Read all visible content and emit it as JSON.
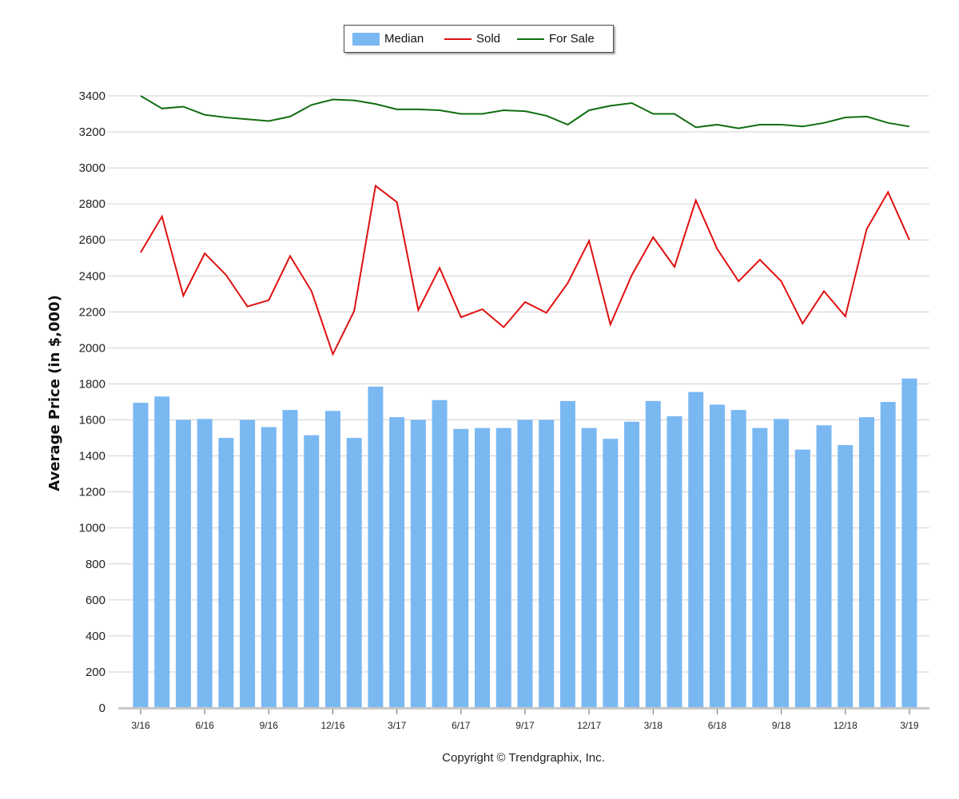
{
  "chart_data": {
    "type": "bar",
    "categories": [
      "3/16",
      "4/16",
      "5/16",
      "6/16",
      "7/16",
      "8/16",
      "9/16",
      "10/16",
      "11/16",
      "12/16",
      "1/17",
      "2/17",
      "3/17",
      "4/17",
      "5/17",
      "6/17",
      "7/17",
      "8/17",
      "9/17",
      "10/17",
      "11/17",
      "12/17",
      "1/18",
      "2/18",
      "3/18",
      "4/18",
      "5/18",
      "6/18",
      "7/18",
      "8/18",
      "9/18",
      "10/18",
      "11/18",
      "12/18",
      "1/19",
      "2/19",
      "3/19"
    ],
    "x_tick_labels": [
      "3/16",
      "6/16",
      "9/16",
      "12/16",
      "3/17",
      "6/17",
      "9/17",
      "12/17",
      "3/18",
      "6/18",
      "9/18",
      "12/18",
      "3/19"
    ],
    "series": [
      {
        "name": "Median",
        "kind": "bar",
        "color": "#7ab8f2",
        "values": [
          1695,
          1730,
          1600,
          1605,
          1500,
          1600,
          1560,
          1655,
          1515,
          1650,
          1500,
          1785,
          1615,
          1600,
          1710,
          1550,
          1555,
          1555,
          1600,
          1600,
          1705,
          1555,
          1495,
          1590,
          1705,
          1620,
          1755,
          1685,
          1655,
          1555,
          1605,
          1435,
          1570,
          1460,
          1615,
          1700,
          1830
        ]
      },
      {
        "name": "Sold",
        "kind": "line",
        "color": "#e01010",
        "values": [
          2530,
          2730,
          2290,
          2525,
          2405,
          2230,
          2265,
          2510,
          2315,
          1965,
          2205,
          2900,
          2810,
          2210,
          2445,
          2170,
          2215,
          2115,
          2255,
          2195,
          2360,
          2595,
          2130,
          2405,
          2615,
          2450,
          2820,
          2550,
          2370,
          2490,
          2370,
          2135,
          2315,
          2175,
          2660,
          2865,
          2600
        ]
      },
      {
        "name": "For Sale",
        "kind": "line",
        "color": "#116e11",
        "values": [
          3400,
          3330,
          3340,
          3295,
          3280,
          3270,
          3260,
          3285,
          3350,
          3380,
          3375,
          3355,
          3325,
          3325,
          3320,
          3300,
          3300,
          3320,
          3315,
          3290,
          3240,
          3320,
          3345,
          3360,
          3300,
          3300,
          3225,
          3240,
          3220,
          3240,
          3240,
          3230,
          3250,
          3280,
          3285,
          3250,
          3230
        ]
      }
    ],
    "ylabel": "Average Price (in $,000)",
    "xlabel": "",
    "ylim": [
      0,
      3400
    ],
    "yticks": [
      0,
      200,
      400,
      600,
      800,
      1000,
      1200,
      1400,
      1600,
      1800,
      2000,
      2200,
      2400,
      2600,
      2800,
      3000,
      3200,
      3400
    ],
    "grid": true,
    "legend_position": "top-center"
  },
  "legend": {
    "median_label": "Median",
    "sold_label": "Sold",
    "for_sale_label": "For Sale"
  },
  "footer": {
    "copyright": "Copyright © Trendgraphix, Inc."
  }
}
